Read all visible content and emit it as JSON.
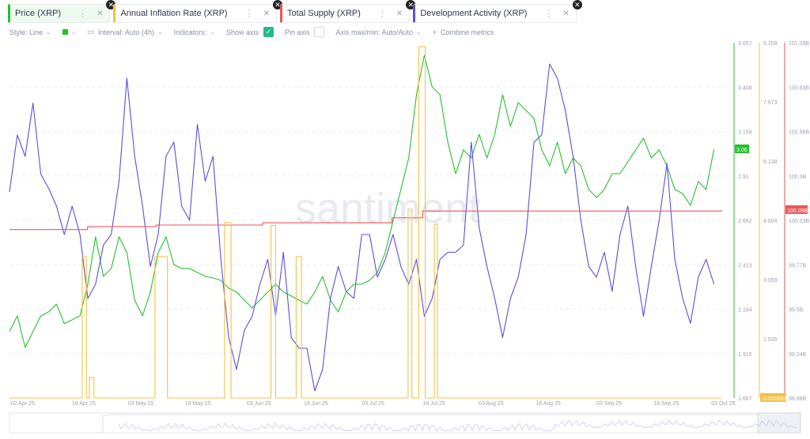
{
  "tabs": [
    {
      "label": "Price (XRP)",
      "color": "#26c12e",
      "active": true
    },
    {
      "label": "Annual Inflation Rate (XRP)",
      "color": "#f5c242",
      "active": false
    },
    {
      "label": "Total Supply (XRP)",
      "color": "#e8575a",
      "active": false
    },
    {
      "label": "Development Activity (XRP)",
      "color": "#5b4fe0",
      "active": false
    }
  ],
  "toolbar": {
    "style": "Style: Line",
    "interval": "Interval: Auto (4h)",
    "indicators": "Indicators:",
    "show_axis": "Show axis",
    "pin_axis": "Pin axis",
    "axis_maxmin": "Axis max/min: Auto/Auto",
    "combine": "Combine metrics"
  },
  "watermark": "santiment",
  "chart_data": {
    "type": "line",
    "x_ticks": [
      "02 Apr 25",
      "18 Apr 25",
      "03 May 25",
      "18 May 25",
      "03 Jun 25",
      "18 Jun 25",
      "03 Jul 25",
      "19 Jul 25",
      "03 Aug 25",
      "18 Aug 25",
      "03 Sep 25",
      "18 Sep 25",
      "03 Oct 25"
    ],
    "x_tick_days": [
      0,
      16,
      31,
      46,
      62,
      77,
      92,
      108,
      123,
      138,
      154,
      169,
      184
    ],
    "x_range_days": [
      -3.5,
      183.5
    ],
    "sample_start_day": -3.5,
    "sample_step_days": 2.056,
    "axes": {
      "price": {
        "ticks": [
          "3.657",
          "3.408",
          "3.159",
          "2.91",
          "2.662",
          "2.413",
          "2.164",
          "1.915",
          "1.667"
        ],
        "range": [
          1.667,
          3.657
        ],
        "current": "3.06"
      },
      "inflation": {
        "ticks": [
          "9.208",
          "7.673",
          "6.138",
          "4.604",
          "3.069",
          "1.535",
          "-0.000283"
        ],
        "range": [
          -0.000283,
          9.208
        ],
        "current": "-0.000283"
      },
      "supply": {
        "ticks": [
          "101.09B",
          "100.83B",
          "100.56B",
          "100.3B",
          "100.03B",
          "99.77B",
          "99.5B",
          "99.24B",
          "98.98B"
        ],
        "range": [
          98.98,
          101.09
        ],
        "current": "100.09B"
      }
    },
    "series": [
      {
        "name": "Price (XRP)",
        "axis": "price",
        "color": "#26c12e",
        "values": [
          2.039,
          2.127,
          1.95,
          2.039,
          2.127,
          2.149,
          2.193,
          2.083,
          2.105,
          2.127,
          2.304,
          2.569,
          2.348,
          2.392,
          2.569,
          2.481,
          2.215,
          2.127,
          2.26,
          2.481,
          2.569,
          2.414,
          2.392,
          2.392,
          2.37,
          2.348,
          2.339,
          2.326,
          2.282,
          2.26,
          2.215,
          2.171,
          2.215,
          2.26,
          2.304,
          2.26,
          2.238,
          2.215,
          2.193,
          2.26,
          2.348,
          2.215,
          2.149,
          2.26,
          2.304,
          2.304,
          2.326,
          2.37,
          2.481,
          2.658,
          2.835,
          3.011,
          3.365,
          3.586,
          3.409,
          3.365,
          3.1,
          2.923,
          3.056,
          3.011,
          3.144,
          3.011,
          3.144,
          3.365,
          3.188,
          3.321,
          3.277,
          3.232,
          3.056,
          2.967,
          3.1,
          2.923,
          3.011,
          2.967,
          2.835,
          2.79,
          2.835,
          2.923,
          2.923,
          2.989,
          3.056,
          3.122,
          3.011,
          3.056,
          2.967,
          2.835,
          2.812,
          2.746,
          2.879,
          2.835,
          3.06
        ]
      },
      {
        "name": "Development Activity (XRP)",
        "axis": "hidden",
        "range": [
          0,
          100
        ],
        "color": "#5b4fe0",
        "values": [
          58,
          74,
          68,
          83,
          63,
          59,
          54,
          46,
          54,
          46,
          28,
          32,
          43,
          46,
          61,
          90,
          68,
          54,
          37,
          46,
          68,
          72,
          54,
          50,
          77,
          61,
          68,
          39,
          17,
          8,
          19,
          23,
          32,
          39,
          23,
          41,
          17,
          14,
          14,
          2,
          8,
          28,
          37,
          30,
          28,
          46,
          46,
          34,
          39,
          46,
          37,
          32,
          39,
          23,
          28,
          39,
          41,
          41,
          43,
          72,
          48,
          37,
          28,
          17,
          28,
          34,
          46,
          72,
          74,
          94,
          90,
          81,
          68,
          50,
          37,
          34,
          41,
          30,
          46,
          54,
          37,
          23,
          37,
          50,
          66,
          39,
          28,
          21,
          34,
          39,
          32
        ]
      },
      {
        "name": "Total Supply (XRP)",
        "axis": "supply",
        "color": "#e8575a",
        "points": [
          [
            -3.5,
            99.98
          ],
          [
            14.5,
            99.98
          ],
          [
            17,
            99.997
          ],
          [
            35,
            100.007
          ],
          [
            63,
            100.02
          ],
          [
            97,
            100.05
          ],
          [
            105,
            100.09
          ],
          [
            183.5,
            100.096
          ]
        ]
      },
      {
        "name": "Annual Inflation Rate (XRP)",
        "axis": "inflation",
        "color": "#f5c242",
        "baseline": 0,
        "spikes": [
          [
            15.6,
            16.7,
            3.66
          ],
          [
            17.5,
            18.7,
            0.53
          ],
          [
            34.7,
            38,
            3.66
          ],
          [
            53,
            54.7,
            4.54
          ],
          [
            65.2,
            66.4,
            4.47
          ],
          [
            71.8,
            73.2,
            3.66
          ],
          [
            101.2,
            102.2,
            4.89
          ],
          [
            104,
            105.7,
            9.1
          ],
          [
            108.1,
            108.9,
            4.5
          ]
        ]
      }
    ]
  }
}
